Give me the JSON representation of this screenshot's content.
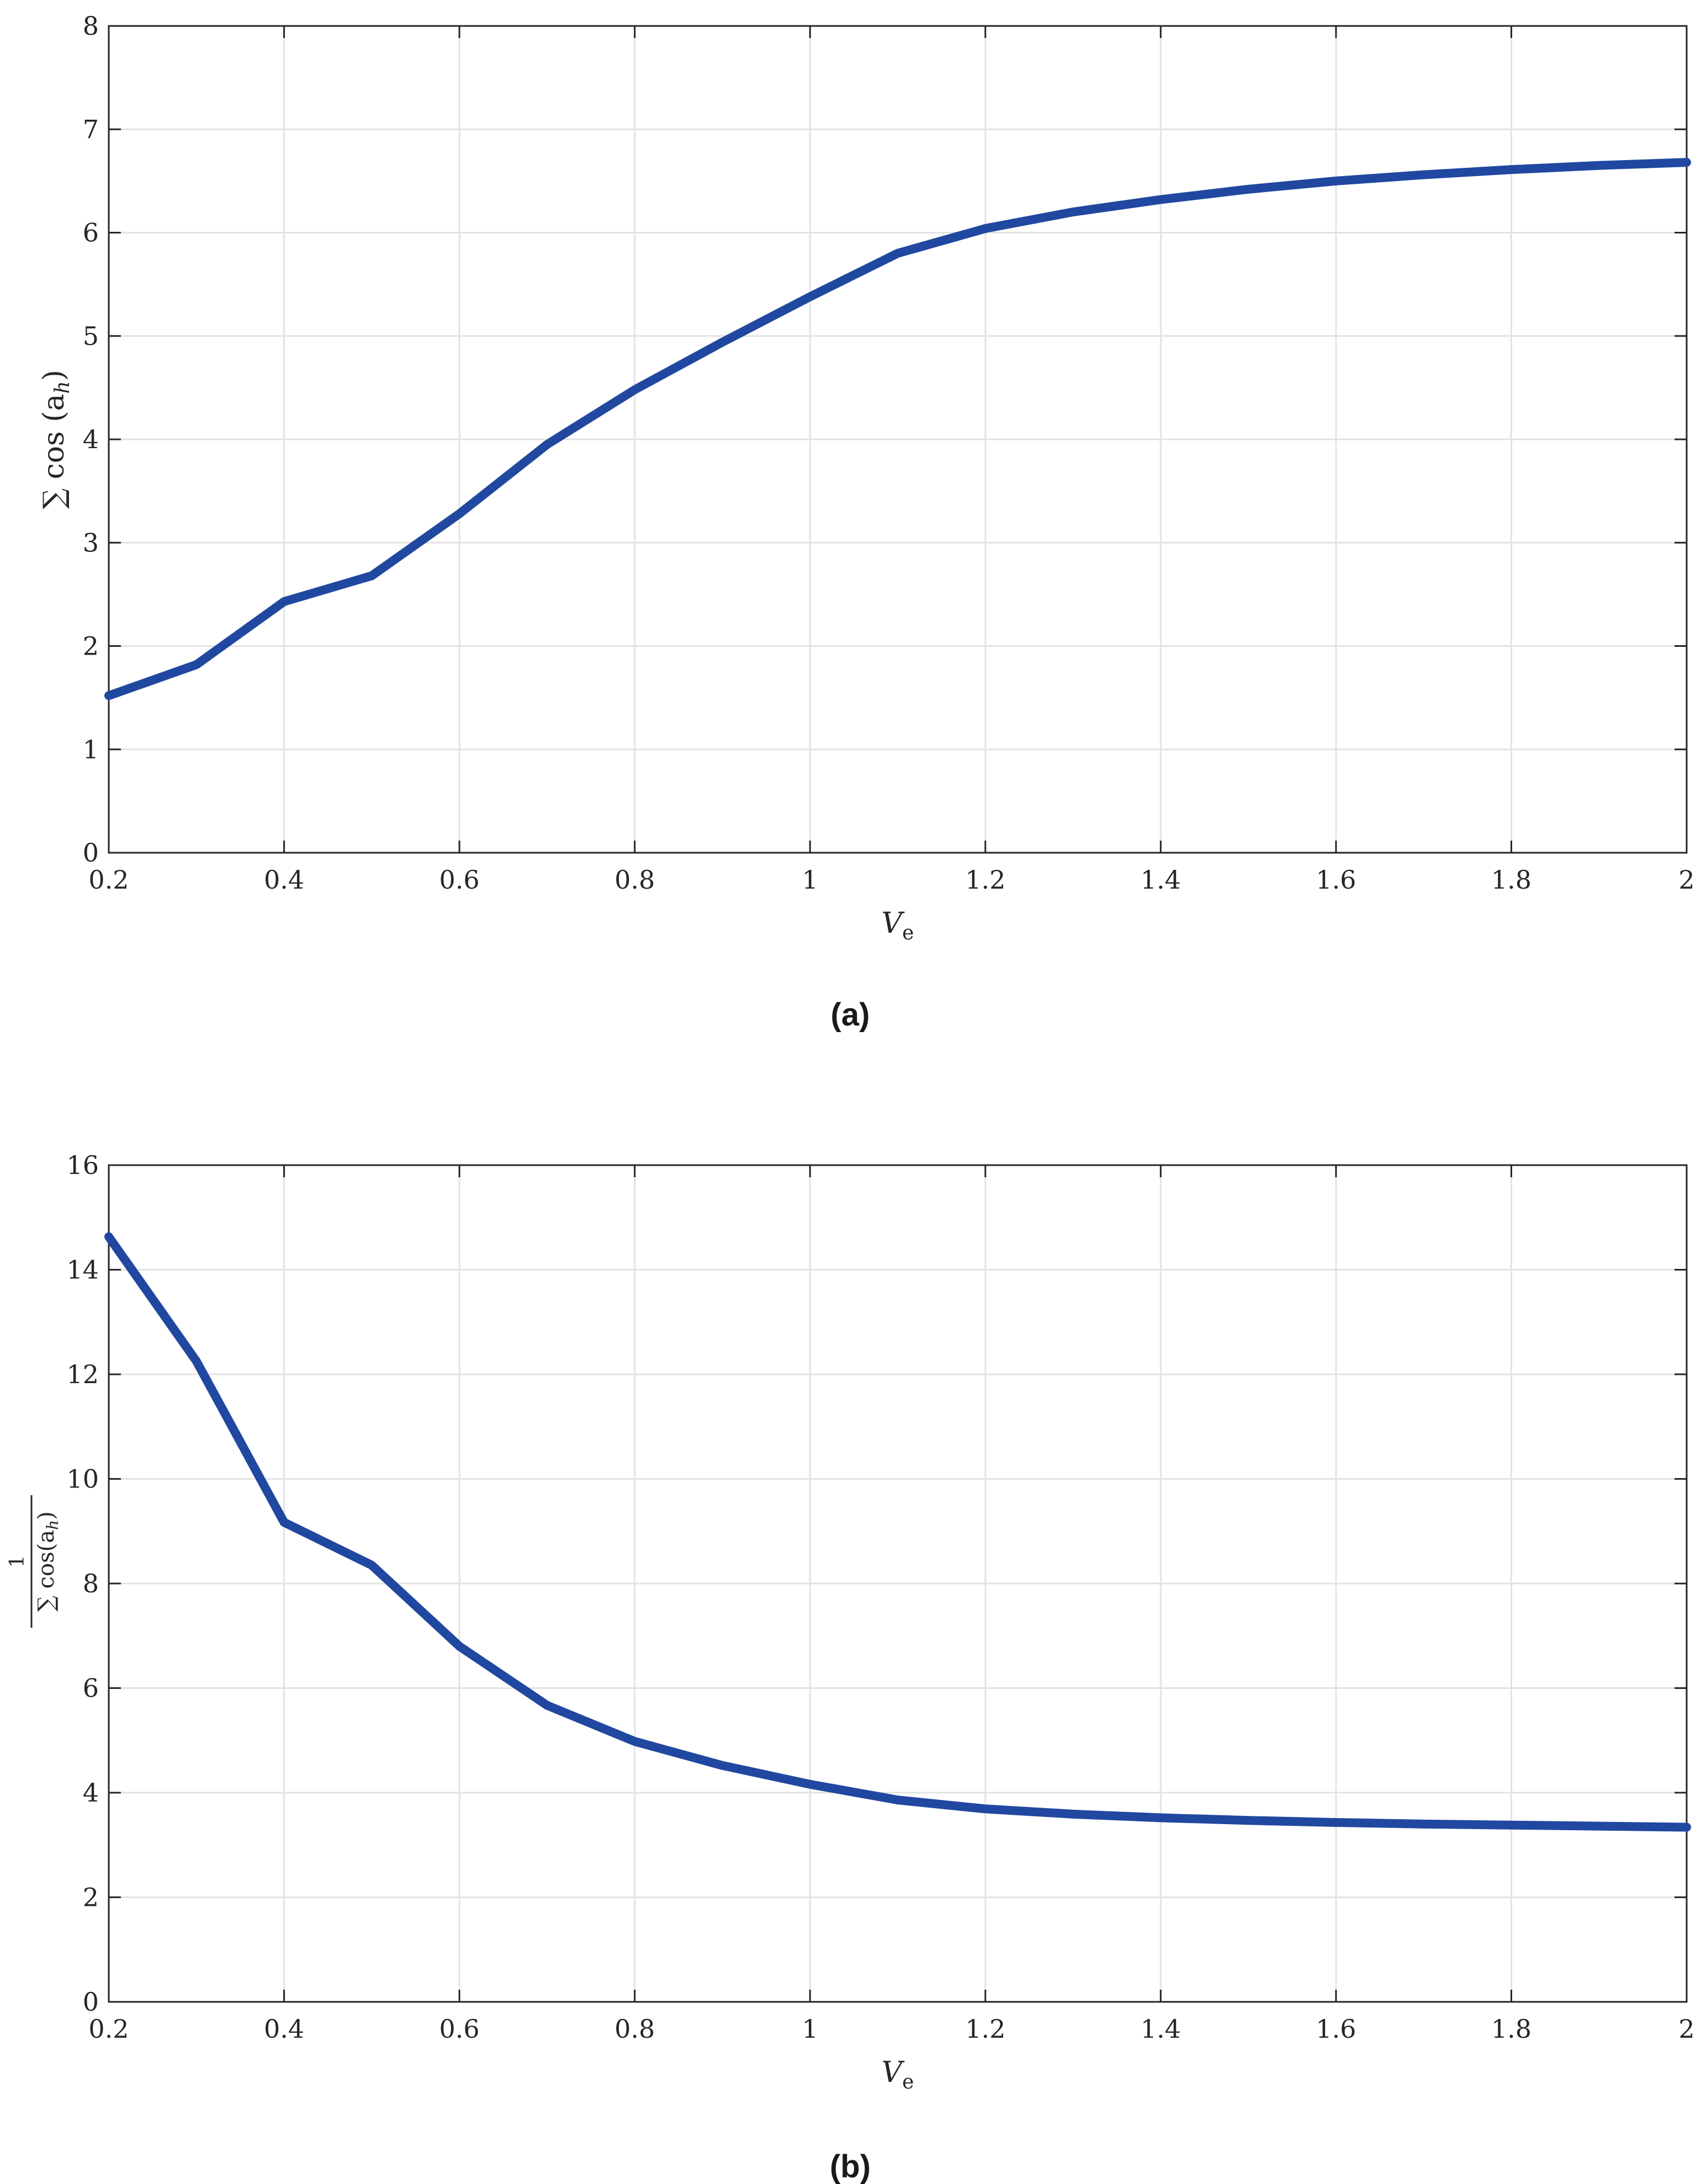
{
  "colors": {
    "series": "#2148A0",
    "grid": "#e3e3e3",
    "axis": "#262626"
  },
  "chart_data": [
    {
      "type": "line",
      "caption": "(a)",
      "xlabel_main": "V",
      "xlabel_sub": "e",
      "ylabel": "∑ cos (a",
      "ylabel_sub": "h",
      "ylabel_close": ")",
      "xlim": [
        0.2,
        2
      ],
      "ylim": [
        0,
        8
      ],
      "grid": true,
      "xticks": [
        0.2,
        0.4,
        0.6,
        0.8,
        1,
        1.2,
        1.4,
        1.6,
        1.8,
        2
      ],
      "xtick_labels": [
        "0.2",
        "0.4",
        "0.6",
        "0.8",
        "1",
        "1.2",
        "1.4",
        "1.6",
        "1.8",
        "2"
      ],
      "yticks": [
        0,
        1,
        2,
        3,
        4,
        5,
        6,
        7,
        8
      ],
      "ytick_labels": [
        "0",
        "1",
        "2",
        "3",
        "4",
        "5",
        "6",
        "7",
        "8"
      ],
      "series": [
        {
          "x": [
            0.2,
            0.3,
            0.4,
            0.5,
            0.6,
            0.7,
            0.8,
            0.9,
            1.0,
            1.1,
            1.2,
            1.3,
            1.4,
            1.5,
            1.6,
            1.7,
            1.8,
            1.9,
            2.0
          ],
          "y": [
            1.52,
            1.82,
            2.43,
            2.68,
            3.28,
            3.95,
            4.48,
            4.94,
            5.38,
            5.8,
            6.04,
            6.2,
            6.32,
            6.42,
            6.5,
            6.56,
            6.61,
            6.65,
            6.68
          ]
        }
      ]
    },
    {
      "type": "line",
      "caption": "(b)",
      "xlabel_main": "V",
      "xlabel_sub": "e",
      "ylabel_num": "1",
      "ylabel_den": "∑ cos(a",
      "ylabel_den_sub": "h",
      "ylabel_den_close": ")",
      "xlim": [
        0.2,
        2
      ],
      "ylim": [
        0,
        16
      ],
      "grid": true,
      "xticks": [
        0.2,
        0.4,
        0.6,
        0.8,
        1,
        1.2,
        1.4,
        1.6,
        1.8,
        2
      ],
      "xtick_labels": [
        "0.2",
        "0.4",
        "0.6",
        "0.8",
        "1",
        "1.2",
        "1.4",
        "1.6",
        "1.8",
        "2"
      ],
      "yticks": [
        0,
        2,
        4,
        6,
        8,
        10,
        12,
        14,
        16
      ],
      "ytick_labels": [
        "0",
        "2",
        "4",
        "6",
        "8",
        "10",
        "12",
        "14",
        "16"
      ],
      "series": [
        {
          "x": [
            0.2,
            0.3,
            0.4,
            0.5,
            0.6,
            0.7,
            0.8,
            0.9,
            1.0,
            1.1,
            1.2,
            1.3,
            1.4,
            1.5,
            1.6,
            1.7,
            1.8,
            1.9,
            2.0
          ],
          "y": [
            14.63,
            12.25,
            9.17,
            8.35,
            6.8,
            5.67,
            4.98,
            4.52,
            4.16,
            3.86,
            3.69,
            3.59,
            3.52,
            3.47,
            3.43,
            3.4,
            3.38,
            3.36,
            3.34
          ]
        }
      ]
    }
  ]
}
